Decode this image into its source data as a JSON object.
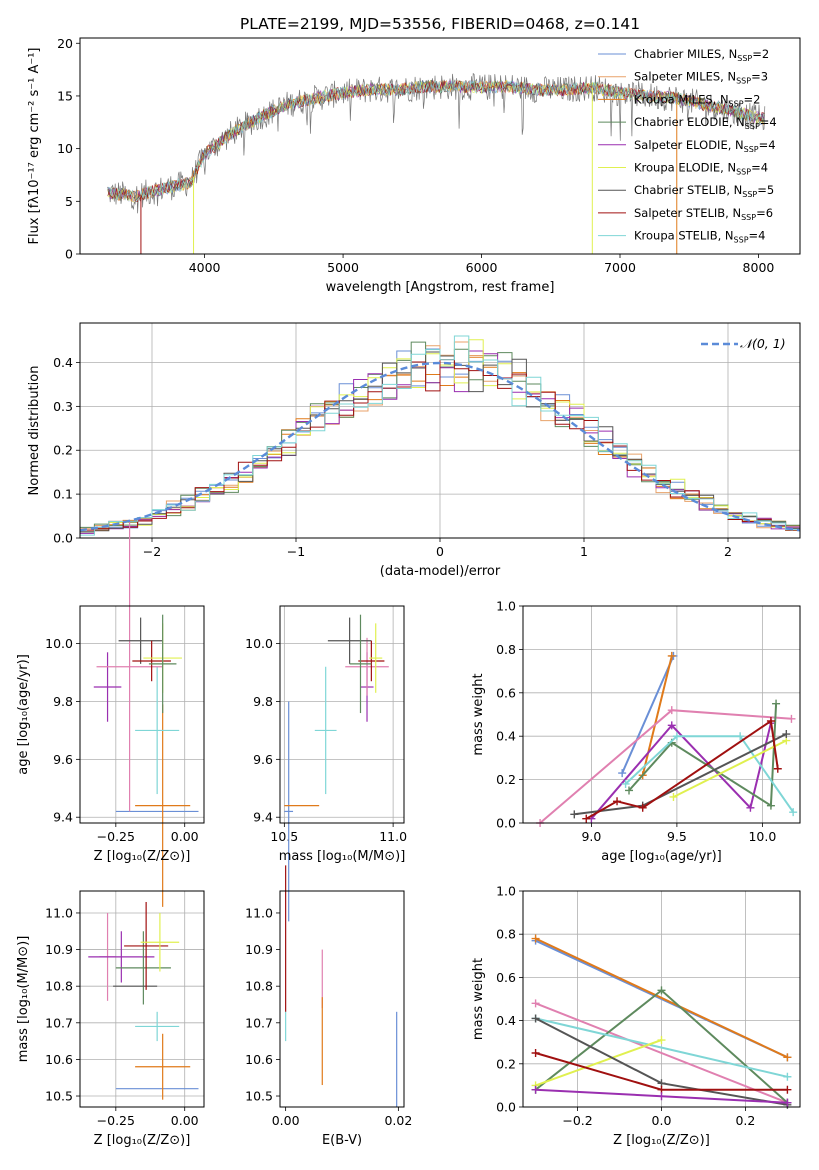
{
  "figure_title": "PLATE=2199, MJD=53556, FIBERID=0468, z=0.141",
  "colors": {
    "Chabrier MILES": "#6a8fd6",
    "Salpeter MILES": "#e8a26a",
    "Kroupa MILES": "#e07a1a",
    "Chabrier ELODIE": "#5e8a5e",
    "Salpeter ELODIE": "#9a2fb0",
    "Kroupa ELODIE": "#e0f050",
    "Chabrier STELIB": "#555555",
    "Salpeter STELIB": "#a01010",
    "Kroupa STELIB": "#7fd6d6",
    "pink": "#e080b0"
  },
  "chart_data": [
    {
      "id": "spectrum",
      "type": "line",
      "xlabel": "wavelength [Angstrom, rest frame]",
      "ylabel": "Flux [fλ10⁻¹⁷ erg cm⁻² s⁻¹ A⁻¹]",
      "xlim": [
        3100,
        8300
      ],
      "ylim": [
        0,
        20.5
      ],
      "xticks": [
        4000,
        5000,
        6000,
        7000,
        8000
      ],
      "yticks": [
        0,
        5,
        10,
        15,
        20
      ],
      "legend_position": "top-right",
      "legend": [
        {
          "name": "Chabrier MILES, N",
          "sub": "SSP",
          "tail": "=2",
          "color": "#6a8fd6"
        },
        {
          "name": "Salpeter MILES, N",
          "sub": "SSP",
          "tail": "=3",
          "color": "#e8a26a"
        },
        {
          "name": "Kroupa MILES, N",
          "sub": "SSP",
          "tail": "=2",
          "color": "#e07a1a"
        },
        {
          "name": "Chabrier ELODIE, N",
          "sub": "SSP",
          "tail": "=4",
          "color": "#5e8a5e"
        },
        {
          "name": "Salpeter ELODIE, N",
          "sub": "SSP",
          "tail": "=4",
          "color": "#9a2fb0"
        },
        {
          "name": "Kroupa ELODIE, N",
          "sub": "SSP",
          "tail": "=4",
          "color": "#e0f050"
        },
        {
          "name": "Chabrier STELIB, N",
          "sub": "SSP",
          "tail": "=5",
          "color": "#555555"
        },
        {
          "name": "Salpeter STELIB, N",
          "sub": "SSP",
          "tail": "=6",
          "color": "#a01010"
        },
        {
          "name": "Kroupa STELIB, N",
          "sub": "SSP",
          "tail": "=4",
          "color": "#7fd6d6"
        }
      ],
      "continuum": [
        [
          3300,
          5.8
        ],
        [
          3500,
          5.5
        ],
        [
          3700,
          6.2
        ],
        [
          3900,
          6.8
        ],
        [
          4000,
          9.5
        ],
        [
          4200,
          11.5
        ],
        [
          4400,
          13.0
        ],
        [
          4600,
          14.2
        ],
        [
          4800,
          14.8
        ],
        [
          5000,
          15.3
        ],
        [
          5200,
          15.6
        ],
        [
          5400,
          15.6
        ],
        [
          5600,
          15.9
        ],
        [
          5800,
          15.9
        ],
        [
          6000,
          15.8
        ],
        [
          6200,
          15.9
        ],
        [
          6400,
          15.6
        ],
        [
          6600,
          15.6
        ],
        [
          6800,
          15.8
        ],
        [
          7000,
          15.3
        ],
        [
          7200,
          15.0
        ],
        [
          7400,
          14.8
        ],
        [
          7600,
          14.2
        ],
        [
          7800,
          13.6
        ],
        [
          8000,
          12.9
        ],
        [
          8050,
          12.8
        ]
      ]
    },
    {
      "id": "residual_hist",
      "type": "histogram",
      "xlabel": "(data-model)/error",
      "ylabel": "Normed distribution",
      "xlim": [
        -2.5,
        2.5
      ],
      "ylim": [
        0,
        0.49
      ],
      "xticks": [
        -2,
        -1,
        0,
        1,
        2
      ],
      "yticks": [
        0.0,
        0.1,
        0.2,
        0.3,
        0.4
      ],
      "grid": true,
      "legend_position": "top-right",
      "legend": "𝒩(0, 1)",
      "bin_width": 0.1
    },
    {
      "id": "age_vs_Z",
      "type": "errorbar",
      "xlabel": "Z [log₁₀(Z/Z⊙)]",
      "ylabel": "age  [log₁₀(age/yr)]",
      "xlim": [
        -0.38,
        0.07
      ],
      "ylim": [
        9.38,
        10.13
      ],
      "xticks": [
        -0.25,
        0.0
      ],
      "yticks": [
        9.4,
        9.6,
        9.8,
        10.0
      ],
      "grid": true,
      "points": [
        {
          "series": "Chabrier MILES",
          "x": -0.1,
          "xerr": 0.15,
          "y": 9.42,
          "yerr": 0.0
        },
        {
          "series": "Kroupa MILES",
          "x": -0.08,
          "xerr": 0.1,
          "y": 9.44,
          "yerr": 0.35
        },
        {
          "series": "Kroupa STELIB",
          "x": -0.1,
          "xerr": 0.08,
          "y": 9.7,
          "yerr": 0.22
        },
        {
          "series": "Salpeter ELODIE",
          "x": -0.28,
          "xerr": 0.05,
          "y": 9.85,
          "yerr": 0.12
        },
        {
          "series": "pink",
          "x": -0.2,
          "xerr": 0.12,
          "y": 9.92,
          "yerr": 0.5
        },
        {
          "series": "Chabrier STELIB",
          "x": -0.16,
          "xerr": 0.08,
          "y": 10.01,
          "yerr": 0.08
        },
        {
          "series": "Salpeter STELIB",
          "x": -0.12,
          "xerr": 0.07,
          "y": 9.94,
          "yerr": 0.07
        },
        {
          "series": "Kroupa ELODIE",
          "x": -0.08,
          "xerr": 0.07,
          "y": 9.95,
          "yerr": 0.12
        },
        {
          "series": "Chabrier ELODIE",
          "x": -0.08,
          "xerr": 0.05,
          "y": 9.93,
          "yerr": 0.17
        }
      ]
    },
    {
      "id": "age_vs_mass",
      "type": "errorbar",
      "xlabel": "mass [log₁₀(M/M⊙)]",
      "ylabel": "",
      "xlim": [
        10.48,
        11.05
      ],
      "ylim": [
        9.38,
        10.13
      ],
      "xticks": [
        10.5,
        11.0
      ],
      "yticks": [
        9.4,
        9.6,
        9.8,
        10.0
      ],
      "grid": true,
      "points": [
        {
          "series": "Chabrier MILES",
          "x": 10.52,
          "xerr": 0.02,
          "y": 9.42,
          "yerr": 0.38
        },
        {
          "series": "Kroupa MILES",
          "x": 10.58,
          "xerr": 0.08,
          "y": 9.44,
          "yerr": 0.0
        },
        {
          "series": "Kroupa STELIB",
          "x": 10.69,
          "xerr": 0.05,
          "y": 9.7,
          "yerr": 0.22
        },
        {
          "series": "Salpeter ELODIE",
          "x": 10.88,
          "xerr": 0.03,
          "y": 9.85,
          "yerr": 0.12
        },
        {
          "series": "pink",
          "x": 10.88,
          "xerr": 0.1,
          "y": 9.92,
          "yerr": 0.1
        },
        {
          "series": "Chabrier STELIB",
          "x": 10.8,
          "xerr": 0.1,
          "y": 10.01,
          "yerr": 0.08
        },
        {
          "series": "Salpeter STELIB",
          "x": 10.9,
          "xerr": 0.06,
          "y": 9.94,
          "yerr": 0.07
        },
        {
          "series": "Kroupa ELODIE",
          "x": 10.92,
          "xerr": 0.03,
          "y": 9.95,
          "yerr": 0.12
        },
        {
          "series": "Chabrier ELODIE",
          "x": 10.85,
          "xerr": 0.05,
          "y": 9.93,
          "yerr": 0.17
        }
      ]
    },
    {
      "id": "weight_vs_age",
      "type": "line",
      "xlabel": "age  [log₁₀(age/yr)]",
      "ylabel": "mass weight",
      "xlim": [
        8.6,
        10.22
      ],
      "ylim": [
        0,
        1.0
      ],
      "xticks": [
        9.0,
        9.5,
        10.0
      ],
      "yticks": [
        0.0,
        0.2,
        0.4,
        0.6,
        0.8,
        1.0
      ],
      "grid": true,
      "series": [
        {
          "name": "Chabrier MILES",
          "x": [
            9.18,
            9.48
          ],
          "y": [
            0.23,
            0.77
          ]
        },
        {
          "name": "Kroupa MILES",
          "x": [
            9.3,
            9.47
          ],
          "y": [
            0.22,
            0.77
          ]
        },
        {
          "name": "pink",
          "x": [
            8.7,
            9.47,
            10.17
          ],
          "y": [
            0.0,
            0.52,
            0.48
          ]
        },
        {
          "name": "Salpeter ELODIE",
          "x": [
            9.0,
            9.47,
            9.93,
            10.05
          ],
          "y": [
            0.02,
            0.45,
            0.07,
            0.46
          ]
        },
        {
          "name": "Chabrier ELODIE",
          "x": [
            9.22,
            9.47,
            10.05,
            10.08
          ],
          "y": [
            0.15,
            0.37,
            0.08,
            0.55
          ]
        },
        {
          "name": "Kroupa STELIB",
          "x": [
            9.2,
            9.5,
            9.87,
            10.18
          ],
          "y": [
            0.18,
            0.4,
            0.4,
            0.05
          ]
        },
        {
          "name": "Kroupa ELODIE",
          "x": [
            9.48,
            10.14
          ],
          "y": [
            0.12,
            0.38
          ]
        },
        {
          "name": "Chabrier STELIB",
          "x": [
            8.9,
            9.3,
            10.14
          ],
          "y": [
            0.04,
            0.08,
            0.41
          ]
        },
        {
          "name": "Salpeter STELIB",
          "x": [
            8.97,
            9.15,
            9.3,
            10.05,
            10.09
          ],
          "y": [
            0.02,
            0.1,
            0.07,
            0.47,
            0.25
          ]
        }
      ]
    },
    {
      "id": "mass_vs_Z",
      "type": "errorbar",
      "xlabel": "Z [log₁₀(Z/Z⊙)]",
      "ylabel": "mass [log₁₀(M/M⊙)]",
      "xlim": [
        -0.38,
        0.07
      ],
      "ylim": [
        10.47,
        11.06
      ],
      "xticks": [
        -0.25,
        0.0
      ],
      "yticks": [
        10.5,
        10.6,
        10.7,
        10.8,
        10.9,
        11.0
      ],
      "grid": true,
      "points": [
        {
          "series": "Chabrier MILES",
          "x": -0.1,
          "xerr": 0.15,
          "y": 10.52,
          "yerr": 0.0
        },
        {
          "series": "Kroupa MILES",
          "x": -0.08,
          "xerr": 0.1,
          "y": 10.58,
          "yerr": 0.09
        },
        {
          "series": "Kroupa STELIB",
          "x": -0.1,
          "xerr": 0.08,
          "y": 10.69,
          "yerr": 0.04
        },
        {
          "series": "pink",
          "x": -0.28,
          "xerr": 0.03,
          "y": 10.88,
          "yerr": 0.12
        },
        {
          "series": "Salpeter ELODIE",
          "x": -0.23,
          "xerr": 0.12,
          "y": 10.88,
          "yerr": 0.07
        },
        {
          "series": "Chabrier ELODIE",
          "x": -0.15,
          "xerr": 0.1,
          "y": 10.85,
          "yerr": 0.1
        },
        {
          "series": "Chabrier STELIB",
          "x": -0.18,
          "xerr": 0.08,
          "y": 10.8,
          "yerr": 0.0
        },
        {
          "series": "Salpeter STELIB",
          "x": -0.14,
          "xerr": 0.08,
          "y": 10.91,
          "yerr": 0.12
        },
        {
          "series": "Kroupa ELODIE",
          "x": -0.09,
          "xerr": 0.07,
          "y": 10.92,
          "yerr": 0.08
        }
      ]
    },
    {
      "id": "mass_vs_EBV",
      "type": "errorbar",
      "xlabel": "E(B-V)",
      "ylabel": "",
      "xlim": [
        -0.001,
        0.021
      ],
      "ylim": [
        10.47,
        11.06
      ],
      "xticks": [
        0.0,
        0.02
      ],
      "yticks": [
        10.5,
        10.6,
        10.7,
        10.8,
        10.9,
        11.0
      ],
      "grid": false,
      "points": [
        {
          "series": "Salpeter STELIB",
          "x": 0.0,
          "xerr": 0.0,
          "y": 10.93,
          "yerr": 0.2
        },
        {
          "series": "Kroupa STELIB",
          "x": 0.0,
          "xerr": 0.0,
          "y": 10.69,
          "yerr": 0.04
        },
        {
          "series": "pink",
          "x": 0.0065,
          "xerr": 0.0,
          "y": 10.82,
          "yerr": 0.08
        },
        {
          "series": "Kroupa MILES",
          "x": 0.0065,
          "xerr": 0.0,
          "y": 10.65,
          "yerr": 0.12
        },
        {
          "series": "Chabrier MILES",
          "x": 0.0197,
          "xerr": 0.0,
          "y": 10.6,
          "yerr": 0.13
        }
      ]
    },
    {
      "id": "weight_vs_Z",
      "type": "line",
      "xlabel": "Z [log₁₀(Z/Z⊙)]",
      "ylabel": "mass weight",
      "xlim": [
        -0.33,
        0.33
      ],
      "ylim": [
        0,
        1.0
      ],
      "xticks": [
        -0.2,
        0.0,
        0.2
      ],
      "yticks": [
        0.0,
        0.2,
        0.4,
        0.6,
        0.8,
        1.0
      ],
      "grid": true,
      "series": [
        {
          "name": "Chabrier MILES",
          "x": [
            -0.3,
            0.3
          ],
          "y": [
            0.77,
            0.23
          ]
        },
        {
          "name": "Kroupa MILES",
          "x": [
            -0.3,
            0.3
          ],
          "y": [
            0.78,
            0.23
          ]
        },
        {
          "name": "pink",
          "x": [
            -0.3,
            0.3
          ],
          "y": [
            0.48,
            0.02
          ]
        },
        {
          "name": "Chabrier ELODIE",
          "x": [
            -0.3,
            0.0,
            0.3
          ],
          "y": [
            0.08,
            0.54,
            0.02
          ]
        },
        {
          "name": "Kroupa STELIB",
          "x": [
            -0.3,
            0.3
          ],
          "y": [
            0.41,
            0.14
          ]
        },
        {
          "name": "Kroupa ELODIE",
          "x": [
            -0.3,
            0.0
          ],
          "y": [
            0.1,
            0.31
          ]
        },
        {
          "name": "Chabrier STELIB",
          "x": [
            -0.3,
            0.0,
            0.3
          ],
          "y": [
            0.41,
            0.11,
            0.01
          ]
        },
        {
          "name": "Salpeter STELIB",
          "x": [
            -0.3,
            0.0,
            0.3
          ],
          "y": [
            0.25,
            0.08,
            0.08
          ]
        },
        {
          "name": "Salpeter ELODIE",
          "x": [
            -0.3,
            0.0,
            0.3
          ],
          "y": [
            0.08,
            0.05,
            0.02
          ]
        }
      ]
    }
  ]
}
